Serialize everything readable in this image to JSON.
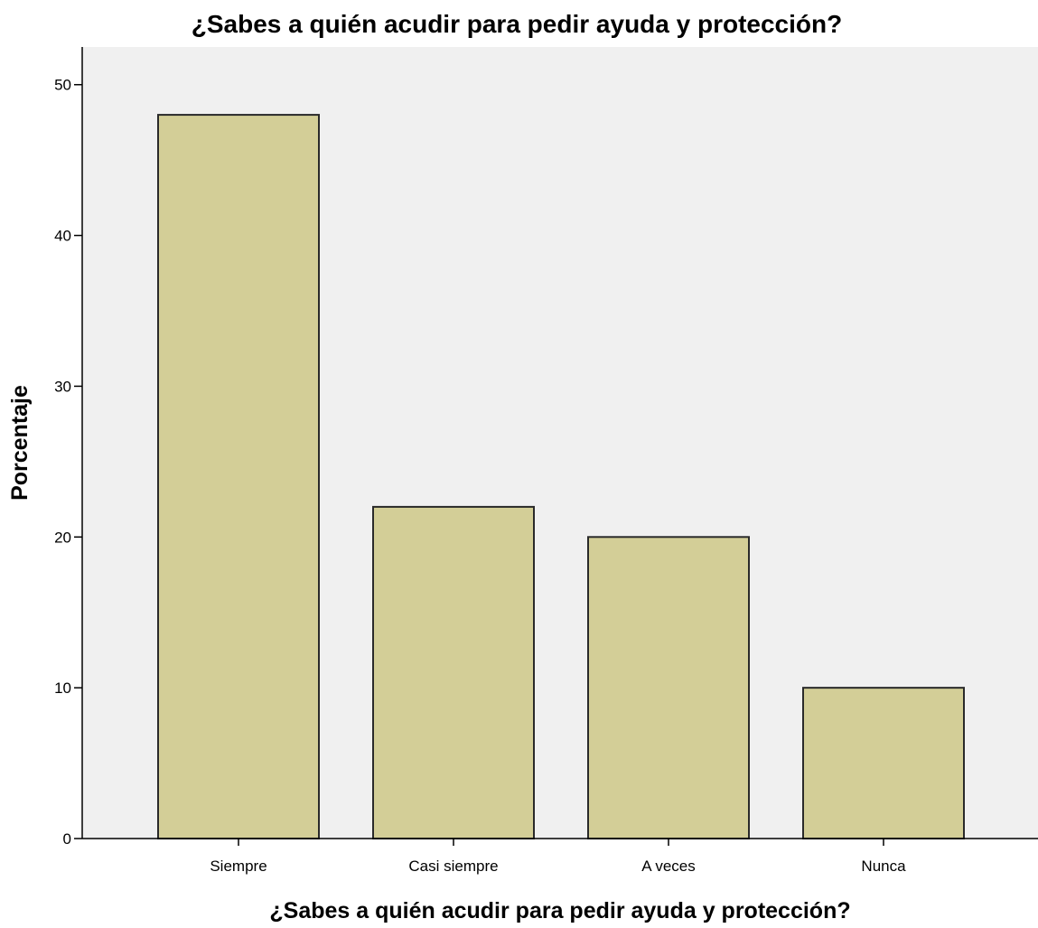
{
  "chart_data": {
    "type": "bar",
    "title": "¿Sabes a quién acudir para pedir ayuda y protección?",
    "xlabel": "¿Sabes a quién acudir para pedir ayuda y protección?",
    "ylabel": "Porcentaje",
    "categories": [
      "Siempre",
      "Casi siempre",
      "A veces",
      "Nunca"
    ],
    "values": [
      48,
      22,
      20,
      10
    ],
    "ylim": [
      0,
      52.5
    ],
    "yticks": [
      0,
      10,
      20,
      30,
      40,
      50
    ],
    "grid": false,
    "colors": {
      "bar_fill": "#d3ce97",
      "bar_stroke": "#2a2a2a",
      "plot_background": "#f0f0f0",
      "axis": "#000000"
    }
  }
}
